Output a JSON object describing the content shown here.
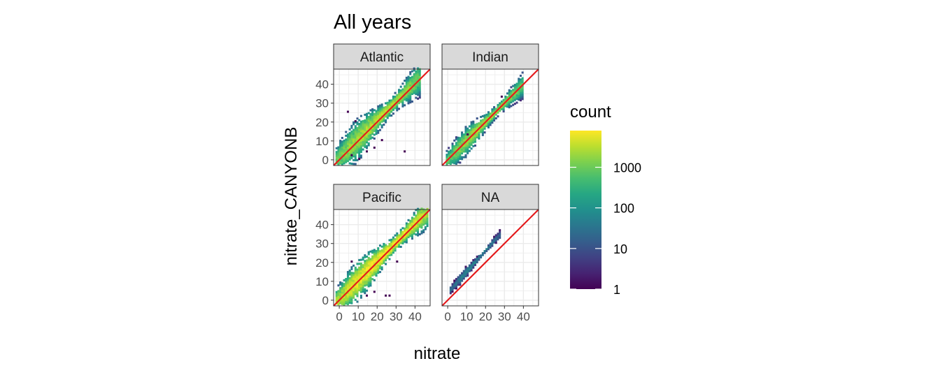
{
  "chart_data": {
    "type": "heatmap",
    "title": "All years",
    "xlabel": "nitrate",
    "ylabel": "nitrate_CANYONB",
    "xlim": [
      -3,
      48
    ],
    "ylim": [
      -3,
      48
    ],
    "x_ticks": [
      0,
      10,
      20,
      30,
      40
    ],
    "y_ticks": [
      0,
      10,
      20,
      30,
      40
    ],
    "x_tick_labels": [
      "0",
      "10",
      "20",
      "30",
      "40"
    ],
    "y_tick_labels": [
      "0",
      "10",
      "20",
      "30",
      "40"
    ],
    "grid": true,
    "reference_line": {
      "slope": 1,
      "intercept": 0,
      "color": "#e41a1c"
    },
    "facets": [
      {
        "label": "Atlantic",
        "x_extent": [
          -2,
          42
        ],
        "slope": 1.0,
        "offset": 1.0,
        "spread": 2.6,
        "peak_count": 3000,
        "outliers": [
          [
            6,
            2
          ],
          [
            10,
            0
          ],
          [
            14,
            4
          ],
          [
            18,
            6
          ],
          [
            22,
            10
          ],
          [
            34,
            4
          ],
          [
            8,
            20
          ],
          [
            4,
            25
          ]
        ]
      },
      {
        "label": "Indian",
        "x_extent": [
          -1,
          39
        ],
        "slope": 1.0,
        "offset": 0.0,
        "spread": 1.8,
        "peak_count": 2500,
        "outliers": [
          [
            10,
            13
          ],
          [
            28,
            33
          ]
        ]
      },
      {
        "label": "Pacific",
        "x_extent": [
          -2,
          46
        ],
        "slope": 1.0,
        "offset": 0.5,
        "spread": 2.4,
        "peak_count": 8000,
        "outliers": [
          [
            14,
            2
          ],
          [
            18,
            4
          ],
          [
            24,
            2
          ],
          [
            26,
            2
          ],
          [
            30,
            20
          ],
          [
            6,
            20
          ]
        ]
      },
      {
        "label": "NA",
        "x_extent": [
          1,
          27
        ],
        "slope": 1.12,
        "offset": 4.0,
        "spread": 0.9,
        "peak_count": 60,
        "outliers": []
      }
    ],
    "legend": {
      "title": "count",
      "scale": "log10",
      "range": [
        1,
        8000
      ],
      "ticks": [
        1,
        10,
        100,
        1000
      ],
      "tick_labels": [
        "1",
        "10",
        "100",
        "1000"
      ],
      "colormap": "viridis",
      "placement": "right"
    }
  }
}
